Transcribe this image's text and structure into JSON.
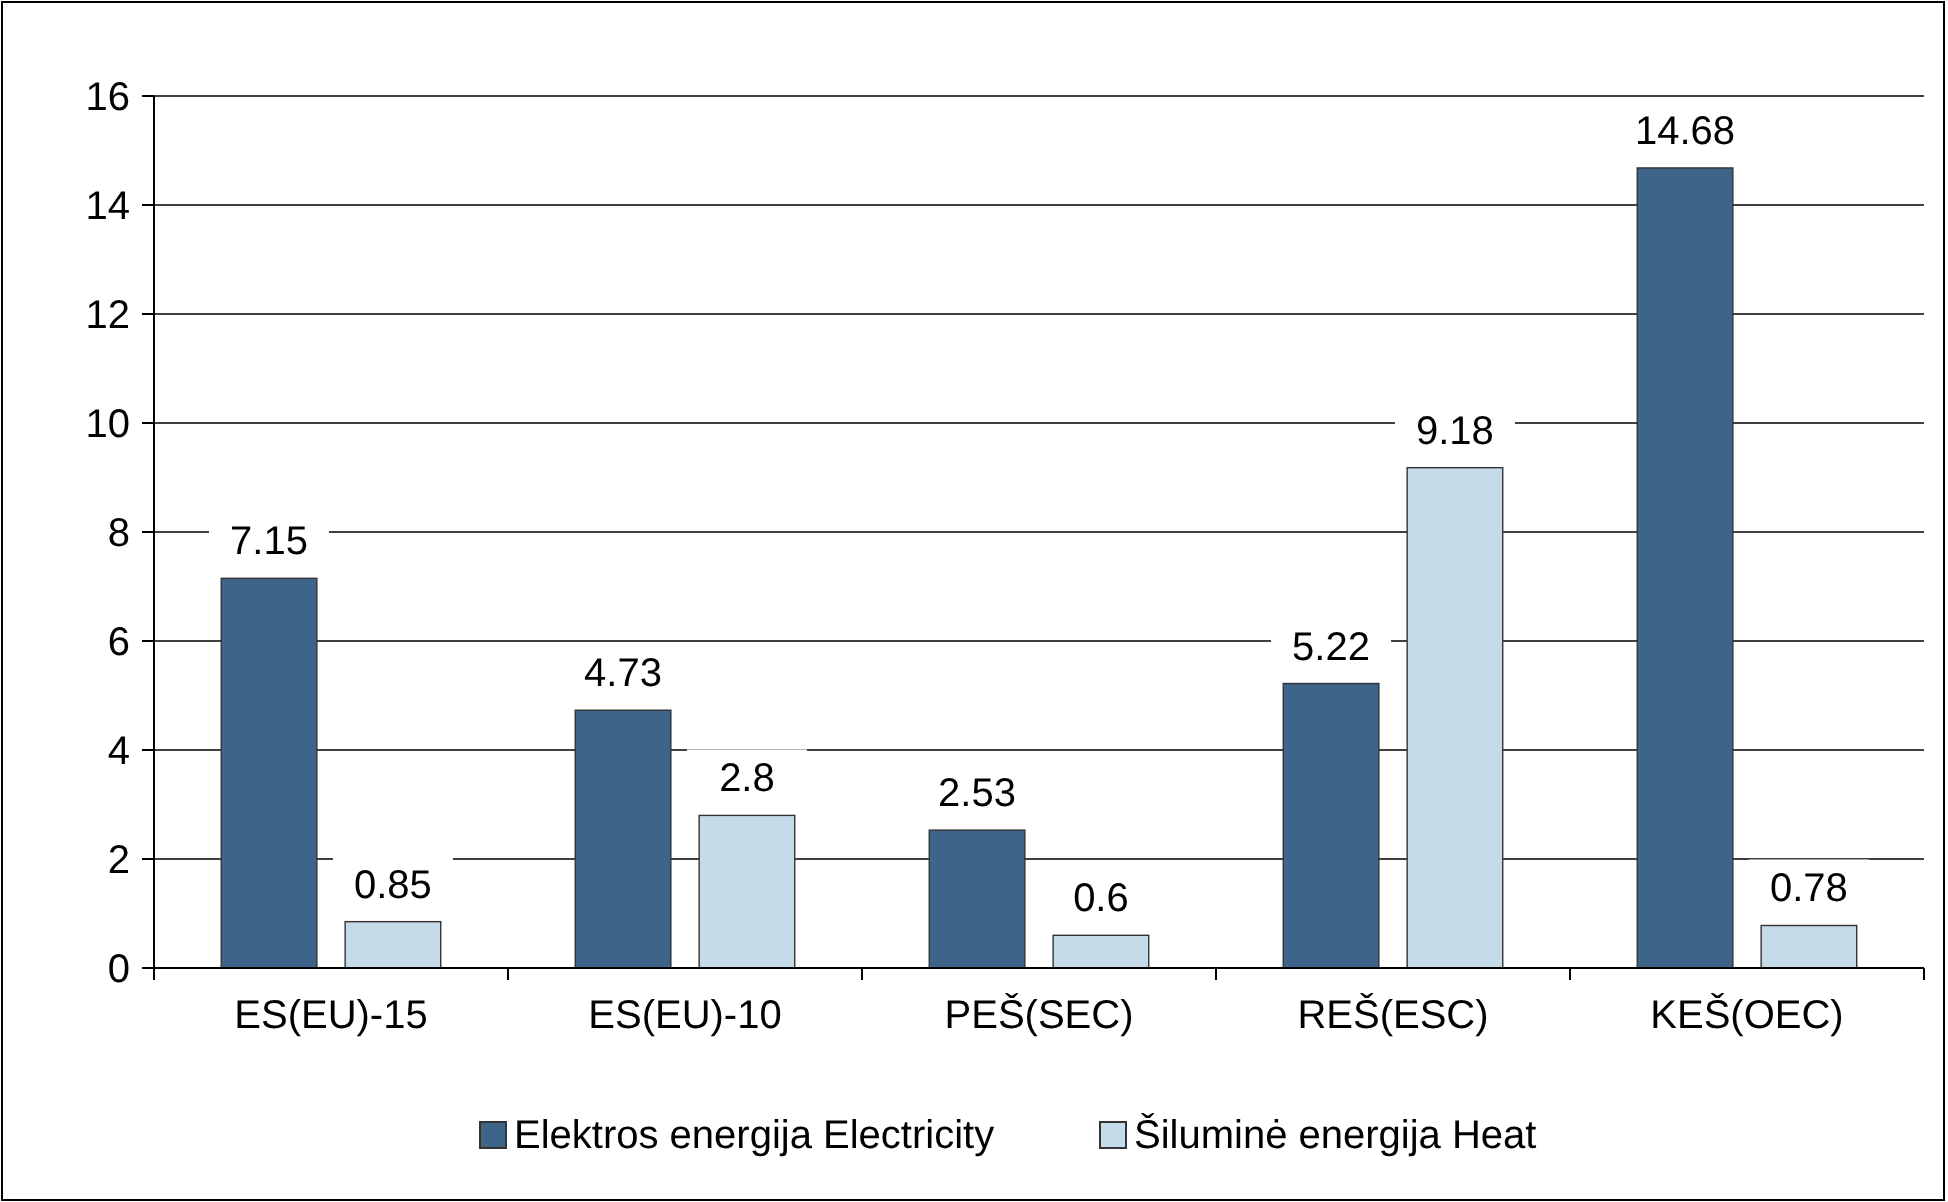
{
  "chart_data": {
    "type": "bar",
    "categories": [
      "ES(EU)-15",
      "ES(EU)-10",
      "PEŠ(SEC)",
      "REŠ(ESC)",
      "KEŠ(OEC)"
    ],
    "series": [
      {
        "name": "Elektros energija  Electricity",
        "color": "#3f6489",
        "values": [
          7.15,
          4.73,
          2.53,
          5.22,
          14.68
        ]
      },
      {
        "name": "Šiluminė energija  Heat",
        "color": "#c6dbea",
        "values": [
          0.85,
          2.8,
          0.6,
          9.18,
          0.78
        ]
      }
    ],
    "ylim": [
      0,
      16
    ],
    "yticks": [
      0,
      2,
      4,
      6,
      8,
      10,
      12,
      14,
      16
    ],
    "grid": "y",
    "legend": "bottom",
    "data_labels": true
  }
}
